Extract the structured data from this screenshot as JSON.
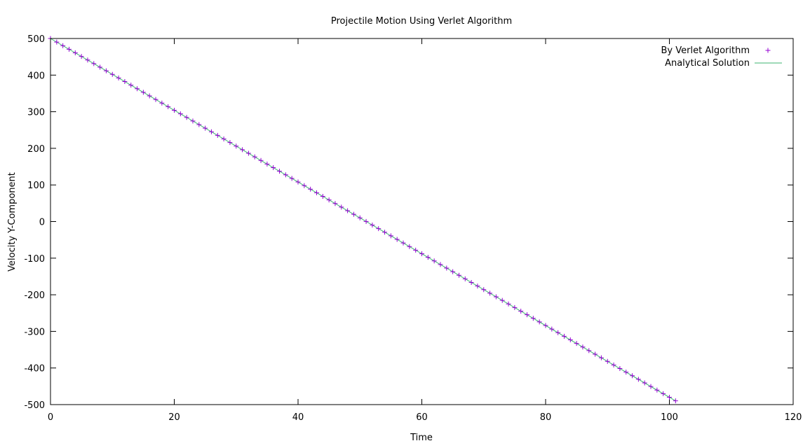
{
  "chart_data": {
    "type": "line",
    "title": "Projectile Motion Using Verlet Algorithm",
    "xlabel": "Time",
    "ylabel": "Velocity Y-Component",
    "xlim": [
      0,
      120
    ],
    "ylim": [
      -500,
      500
    ],
    "xticks": [
      0,
      20,
      40,
      60,
      80,
      100,
      120
    ],
    "yticks": [
      500,
      400,
      300,
      200,
      100,
      0,
      -100,
      -200,
      -300,
      -400,
      -500
    ],
    "grid": false,
    "legend_position": "top-right",
    "series": [
      {
        "name": "By Verlet Algorithm",
        "style": "points",
        "marker": "plus",
        "color": "#9400d3",
        "x": [
          0,
          1,
          2,
          3,
          4,
          5,
          6,
          7,
          8,
          9,
          10,
          11,
          12,
          13,
          14,
          15,
          16,
          17,
          18,
          19,
          20,
          21,
          22,
          23,
          24,
          25,
          26,
          27,
          28,
          29,
          30,
          31,
          32,
          33,
          34,
          35,
          36,
          37,
          38,
          39,
          40,
          41,
          42,
          43,
          44,
          45,
          46,
          47,
          48,
          49,
          50,
          51,
          52,
          53,
          54,
          55,
          56,
          57,
          58,
          59,
          60,
          61,
          62,
          63,
          64,
          65,
          66,
          67,
          68,
          69,
          70,
          71,
          72,
          73,
          74,
          75,
          76,
          77,
          78,
          79,
          80,
          81,
          82,
          83,
          84,
          85,
          86,
          87,
          88,
          89,
          90,
          91,
          92,
          93,
          94,
          95,
          96,
          97,
          98,
          99,
          100,
          101
        ],
        "y": [
          500,
          490.2,
          480.4,
          470.6,
          460.8,
          451,
          441.2,
          431.4,
          421.6,
          411.8,
          402,
          392.2,
          382.4,
          372.6,
          362.8,
          353,
          343.2,
          333.4,
          323.6,
          313.8,
          304,
          294.2,
          284.4,
          274.6,
          264.8,
          255,
          245.2,
          235.4,
          225.6,
          215.8,
          206,
          196.2,
          186.4,
          176.6,
          166.8,
          157,
          147.2,
          137.4,
          127.6,
          117.8,
          108,
          98.2,
          88.4,
          78.6,
          68.8,
          59,
          49.2,
          39.4,
          29.6,
          19.8,
          10,
          0.2,
          -9.6,
          -19.4,
          -29.2,
          -39,
          -48.8,
          -58.6,
          -68.4,
          -78.2,
          -88,
          -97.8,
          -107.6,
          -117.4,
          -127.2,
          -137,
          -146.8,
          -156.6,
          -166.4,
          -176.2,
          -186,
          -195.8,
          -205.6,
          -215.4,
          -225.2,
          -235,
          -244.8,
          -254.6,
          -264.4,
          -274.2,
          -284,
          -293.8,
          -303.6,
          -313.4,
          -323.2,
          -333,
          -342.8,
          -352.6,
          -362.4,
          -372.2,
          -382,
          -391.8,
          -401.6,
          -411.4,
          -421.2,
          -431,
          -440.8,
          -450.6,
          -460.4,
          -470.2,
          -480,
          -489.8
        ]
      },
      {
        "name": "Analytical Solution",
        "style": "line",
        "color": "#3cb371",
        "x": [
          0,
          101
        ],
        "y": [
          500,
          -489.8
        ]
      }
    ]
  }
}
